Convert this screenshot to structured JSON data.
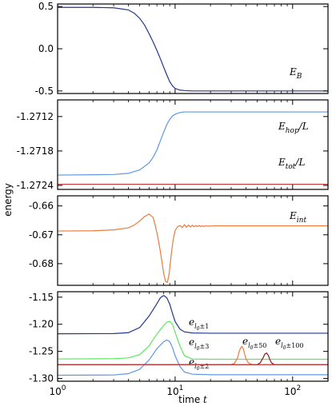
{
  "chart_data": {
    "type": "line",
    "xscale": "log",
    "xlim": [
      1,
      200
    ],
    "xlabel": "time t",
    "ylabel": "energy",
    "x_ticklabels": [
      "10^0",
      "10^1",
      "10^2"
    ],
    "panels": [
      {
        "ylim": [
          -0.53,
          0.53
        ],
        "yticks": [
          0.5,
          0.0,
          -0.5
        ],
        "ytick_labels": [
          "0.5",
          "0.0",
          "-0.5"
        ],
        "series": [
          {
            "name": "E_B",
            "color": "#24378a",
            "x": [
              1,
              2,
              3,
              4,
              4.5,
              5,
              5.5,
              6,
              6.5,
              7,
              7.5,
              8,
              8.5,
              9,
              9.5,
              10,
              11,
              12,
              14,
              200
            ],
            "y": [
              0.49,
              0.49,
              0.485,
              0.46,
              0.42,
              0.36,
              0.28,
              0.18,
              0.08,
              -0.02,
              -0.12,
              -0.22,
              -0.31,
              -0.39,
              -0.44,
              -0.47,
              -0.49,
              -0.495,
              -0.5,
              -0.5
            ]
          }
        ]
      },
      {
        "ylim": [
          -1.27247,
          -1.27091
        ],
        "yticks": [
          -1.2712,
          -1.2718,
          -1.2724
        ],
        "ytick_labels": [
          "-1.2712",
          "-1.2718",
          "-1.2724"
        ],
        "series": [
          {
            "name": "E_hop/L",
            "color": "#5f97e5",
            "x": [
              1,
              3,
              4,
              5,
              6,
              6.5,
              7,
              7.5,
              8,
              8.5,
              9,
              9.5,
              10,
              11,
              12,
              14,
              200
            ],
            "y": [
              -1.27222,
              -1.27221,
              -1.27219,
              -1.27213,
              -1.27201,
              -1.27191,
              -1.27178,
              -1.27162,
              -1.27147,
              -1.27134,
              -1.27125,
              -1.27119,
              -1.27116,
              -1.27113,
              -1.27112,
              -1.27112,
              -1.27112
            ]
          },
          {
            "name": "E_tot/L",
            "color": "#c73a3a",
            "x": [
              1,
              200
            ],
            "y": [
              -1.27238,
              -1.27238
            ]
          }
        ]
      },
      {
        "ylim": [
          -0.6875,
          -0.6565
        ],
        "yticks": [
          -0.66,
          -0.67,
          -0.68
        ],
        "ytick_labels": [
          "-0.66",
          "-0.67",
          "-0.68"
        ],
        "series": [
          {
            "name": "E_int",
            "color": "#ee7a3c",
            "x": [
              1,
              2,
              3,
              4,
              4.5,
              5,
              5.5,
              6,
              6.5,
              6.8,
              7.1,
              7.4,
              7.7,
              8,
              8.3,
              8.6,
              8.9,
              9.2,
              9.6,
              10,
              10.5,
              11,
              11.5,
              12,
              12.5,
              13,
              13.5,
              14,
              14.5,
              15,
              15.5,
              16,
              16.5,
              17,
              17.5,
              18,
              18.5,
              19,
              19.5,
              20,
              20.5,
              21,
              22,
              24,
              200
            ],
            "y": [
              -0.6687,
              -0.6686,
              -0.6683,
              -0.6676,
              -0.6666,
              -0.6652,
              -0.6637,
              -0.6628,
              -0.664,
              -0.667,
              -0.6705,
              -0.6745,
              -0.679,
              -0.6835,
              -0.6862,
              -0.6865,
              -0.6835,
              -0.678,
              -0.672,
              -0.6685,
              -0.6672,
              -0.6668,
              -0.6675,
              -0.6665,
              -0.6674,
              -0.6666,
              -0.6673,
              -0.6667,
              -0.6672,
              -0.6668,
              -0.6671,
              -0.6668,
              -0.6671,
              -0.6669,
              -0.6671,
              -0.6669,
              -0.667,
              -0.6669,
              -0.667,
              -0.6669,
              -0.667,
              -0.6669,
              -0.6669,
              -0.6669,
              -0.6669
            ]
          }
        ]
      },
      {
        "ylim": [
          -1.305,
          -1.14
        ],
        "yticks": [
          -1.15,
          -1.2,
          -1.25,
          -1.3
        ],
        "ytick_labels": [
          "-1.15",
          "-1.20",
          "-1.25",
          "-1.30"
        ],
        "series": [
          {
            "name": "e_{l0±1}",
            "color": "#24378a",
            "x": [
              1,
              3,
              4,
              5,
              6,
              7,
              7.5,
              8,
              8.5,
              9,
              9.5,
              10,
              11,
              12,
              14,
              20,
              200
            ],
            "y": [
              -1.2175,
              -1.2172,
              -1.2155,
              -1.206,
              -1.185,
              -1.162,
              -1.151,
              -1.147,
              -1.151,
              -1.163,
              -1.18,
              -1.195,
              -1.209,
              -1.214,
              -1.216,
              -1.2165,
              -1.2165
            ]
          },
          {
            "name": "e_{l0±3}",
            "color": "#5ee65e",
            "x": [
              1,
              3,
              4,
              5,
              6,
              7,
              8,
              8.5,
              9,
              9.5,
              10,
              11,
              12,
              14,
              20,
              200
            ],
            "y": [
              -1.264,
              -1.2635,
              -1.262,
              -1.256,
              -1.24,
              -1.218,
              -1.202,
              -1.196,
              -1.195,
              -1.2,
              -1.215,
              -1.24,
              -1.258,
              -1.264,
              -1.2645,
              -1.2645
            ]
          },
          {
            "name": "e_{l0±2}",
            "color": "#5f97e5",
            "x": [
              1,
              3,
              4,
              5,
              6,
              7,
              8,
              8.5,
              9,
              9.5,
              10,
              11,
              12,
              14,
              20,
              200
            ],
            "y": [
              -1.294,
              -1.2935,
              -1.291,
              -1.283,
              -1.266,
              -1.245,
              -1.232,
              -1.229,
              -1.232,
              -1.243,
              -1.258,
              -1.278,
              -1.288,
              -1.292,
              -1.293,
              -1.293
            ]
          },
          {
            "name": "e_{l0±50}",
            "color": "#ee7a3c",
            "x": [
              1,
              30,
              32,
              34,
              35,
              36,
              37,
              38,
              39,
              40,
              42,
              45,
              200
            ],
            "y": [
              -1.2742,
              -1.2742,
              -1.272,
              -1.262,
              -1.251,
              -1.244,
              -1.241,
              -1.245,
              -1.254,
              -1.263,
              -1.271,
              -1.2742,
              -1.2742
            ]
          },
          {
            "name": "e_{l0±100}",
            "color": "#8e1c1c",
            "x": [
              1,
              50,
              53,
              56,
              58,
              60,
              62,
              64,
              66,
              70,
              75,
              200
            ],
            "y": [
              -1.2745,
              -1.2745,
              -1.271,
              -1.262,
              -1.255,
              -1.253,
              -1.257,
              -1.265,
              -1.271,
              -1.2745,
              -1.2745,
              -1.2745
            ]
          },
          {
            "name": "E_tot/L",
            "color": "#c73a3a",
            "x": [
              1,
              200
            ],
            "y": [
              -1.2745,
              -1.2745
            ]
          }
        ]
      }
    ]
  }
}
